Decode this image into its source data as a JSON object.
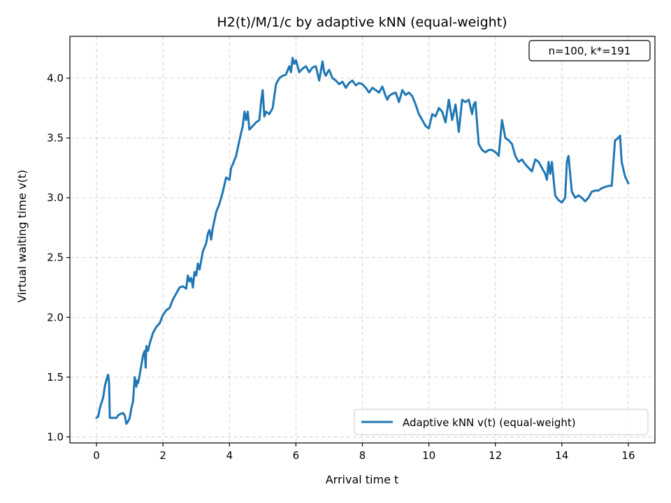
{
  "chart_data": {
    "type": "line",
    "title": "H2(t)/M/1/c by adaptive kNN (equal-weight)",
    "xlabel": "Arrival time t",
    "ylabel": "Virtual waiting time v(t)",
    "xlim": [
      -0.8,
      16.8
    ],
    "ylim": [
      0.95,
      4.35
    ],
    "xticks": [
      0,
      2,
      4,
      6,
      8,
      10,
      12,
      14,
      16
    ],
    "xtick_labels": [
      "0",
      "2",
      "4",
      "6",
      "8",
      "10",
      "12",
      "14",
      "16"
    ],
    "yticks": [
      1.0,
      1.5,
      2.0,
      2.5,
      3.0,
      3.5,
      4.0
    ],
    "ytick_labels": [
      "1.0",
      "1.5",
      "2.0",
      "2.5",
      "3.0",
      "3.5",
      "4.0"
    ],
    "grid": true,
    "legend_position": "lower right",
    "annotation": "n=100, k*=191",
    "annotation_position": "upper right",
    "series": [
      {
        "name": "Adaptive kNN v(t) (equal-weight)",
        "color": "#1f77b4",
        "x": [
          0,
          0.05,
          0.1,
          0.2,
          0.25,
          0.3,
          0.35,
          0.38,
          0.4,
          0.5,
          0.6,
          0.65,
          0.7,
          0.8,
          0.85,
          0.9,
          0.95,
          1.0,
          1.05,
          1.1,
          1.15,
          1.2,
          1.22,
          1.25,
          1.3,
          1.35,
          1.4,
          1.45,
          1.48,
          1.5,
          1.55,
          1.6,
          1.7,
          1.8,
          1.9,
          2.0,
          2.1,
          2.2,
          2.3,
          2.4,
          2.5,
          2.6,
          2.7,
          2.75,
          2.8,
          2.85,
          2.9,
          2.95,
          3.0,
          3.05,
          3.1,
          3.2,
          3.3,
          3.35,
          3.4,
          3.45,
          3.5,
          3.6,
          3.7,
          3.8,
          3.9,
          4.0,
          4.05,
          4.1,
          4.2,
          4.3,
          4.4,
          4.45,
          4.5,
          4.55,
          4.6,
          4.7,
          4.8,
          4.9,
          4.95,
          5.0,
          5.05,
          5.1,
          5.2,
          5.3,
          5.4,
          5.5,
          5.6,
          5.7,
          5.8,
          5.85,
          5.9,
          5.95,
          6.0,
          6.1,
          6.2,
          6.3,
          6.4,
          6.5,
          6.6,
          6.7,
          6.8,
          6.85,
          6.9,
          6.95,
          7.0,
          7.1,
          7.2,
          7.3,
          7.4,
          7.5,
          7.6,
          7.7,
          7.8,
          7.9,
          8.0,
          8.1,
          8.2,
          8.3,
          8.4,
          8.5,
          8.6,
          8.7,
          8.75,
          8.8,
          8.9,
          9.0,
          9.1,
          9.2,
          9.3,
          9.4,
          9.5,
          9.6,
          9.7,
          9.8,
          9.9,
          10.0,
          10.1,
          10.2,
          10.3,
          10.4,
          10.5,
          10.6,
          10.7,
          10.8,
          10.9,
          11.0,
          11.1,
          11.2,
          11.3,
          11.35,
          11.4,
          11.5,
          11.6,
          11.7,
          11.8,
          11.9,
          12.0,
          12.05,
          12.1,
          12.2,
          12.3,
          12.4,
          12.5,
          12.6,
          12.7,
          12.8,
          12.9,
          13.0,
          13.1,
          13.2,
          13.3,
          13.4,
          13.5,
          13.55,
          13.6,
          13.65,
          13.7,
          13.8,
          13.9,
          14.0,
          14.1,
          14.15,
          14.2,
          14.3,
          14.4,
          14.5,
          14.6,
          14.7,
          14.8,
          14.9,
          15.0,
          15.1,
          15.2,
          15.3,
          15.4,
          15.5,
          15.6,
          15.7,
          15.75,
          15.8,
          15.9,
          16.0
        ],
        "y": [
          1.16,
          1.17,
          1.24,
          1.33,
          1.42,
          1.48,
          1.52,
          1.45,
          1.16,
          1.16,
          1.16,
          1.18,
          1.19,
          1.2,
          1.18,
          1.11,
          1.13,
          1.16,
          1.24,
          1.3,
          1.5,
          1.42,
          1.47,
          1.45,
          1.52,
          1.6,
          1.68,
          1.72,
          1.58,
          1.76,
          1.72,
          1.78,
          1.87,
          1.92,
          1.95,
          2.02,
          2.06,
          2.08,
          2.15,
          2.2,
          2.25,
          2.26,
          2.24,
          2.35,
          2.3,
          2.33,
          2.25,
          2.38,
          2.35,
          2.45,
          2.4,
          2.55,
          2.62,
          2.7,
          2.73,
          2.65,
          2.75,
          2.88,
          2.95,
          3.05,
          3.17,
          3.15,
          3.25,
          3.28,
          3.35,
          3.48,
          3.6,
          3.72,
          3.65,
          3.72,
          3.57,
          3.6,
          3.63,
          3.65,
          3.8,
          3.9,
          3.68,
          3.72,
          3.7,
          3.75,
          3.95,
          4.0,
          4.02,
          4.03,
          4.1,
          4.05,
          4.17,
          4.12,
          4.15,
          4.05,
          4.08,
          4.1,
          4.05,
          4.09,
          4.1,
          3.98,
          4.14,
          4.05,
          4.02,
          4.05,
          4.07,
          4.0,
          3.98,
          3.95,
          3.97,
          3.92,
          3.96,
          3.98,
          3.94,
          3.96,
          3.95,
          3.92,
          3.88,
          3.92,
          3.9,
          3.88,
          3.93,
          3.85,
          3.82,
          3.85,
          3.87,
          3.88,
          3.8,
          3.9,
          3.86,
          3.88,
          3.85,
          3.78,
          3.7,
          3.65,
          3.6,
          3.58,
          3.7,
          3.68,
          3.75,
          3.72,
          3.63,
          3.82,
          3.65,
          3.78,
          3.55,
          3.82,
          3.8,
          3.82,
          3.7,
          3.78,
          3.8,
          3.45,
          3.4,
          3.38,
          3.4,
          3.4,
          3.38,
          3.37,
          3.35,
          3.65,
          3.5,
          3.48,
          3.45,
          3.35,
          3.3,
          3.32,
          3.28,
          3.25,
          3.22,
          3.32,
          3.3,
          3.25,
          3.2,
          3.15,
          3.3,
          3.2,
          3.3,
          3.02,
          2.98,
          2.96,
          3.0,
          3.3,
          3.35,
          3.05,
          3.0,
          3.02,
          3.0,
          2.97,
          3.0,
          3.05,
          3.06,
          3.06,
          3.08,
          3.09,
          3.1,
          3.1,
          3.48,
          3.5,
          3.52,
          3.3,
          3.18,
          3.12
        ]
      }
    ]
  }
}
